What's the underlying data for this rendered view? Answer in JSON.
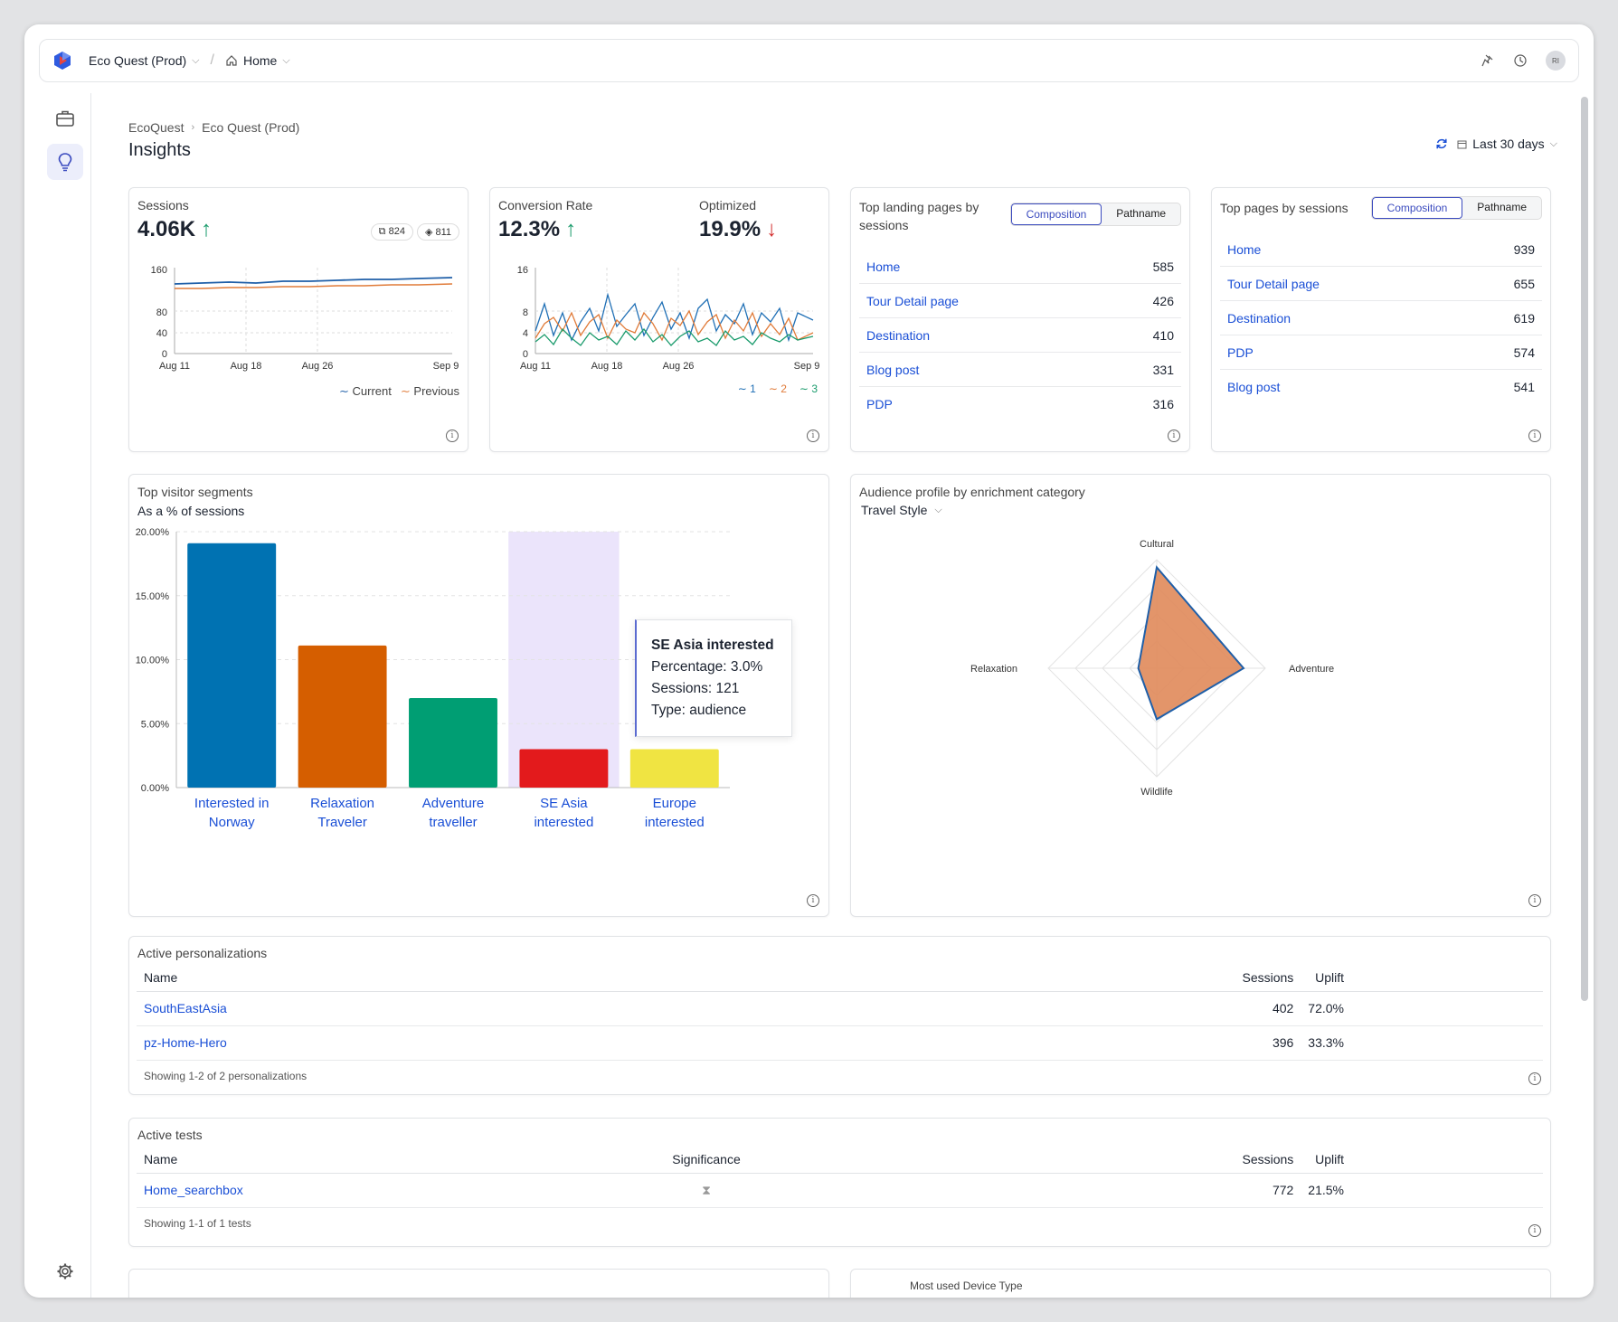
{
  "header": {
    "project": "Eco Quest (Prod)",
    "page": "Home",
    "avatar_initials": "RI"
  },
  "breadcrumb": {
    "org": "EcoQuest",
    "project": "Eco Quest (Prod)"
  },
  "page_title": "Insights",
  "date_range": "Last 30 days",
  "sessions": {
    "label": "Sessions",
    "value": "4.06K",
    "badge1": "824",
    "badge2": "811",
    "legend_current": "Current",
    "legend_previous": "Previous",
    "yticks": [
      "160",
      "80",
      "40",
      "0"
    ],
    "xticks": [
      "Aug 11",
      "Aug 18",
      "Aug 26",
      "Sep 9"
    ]
  },
  "conversion": {
    "label": "Conversion Rate",
    "value": "12.3%",
    "optimized_label": "Optimized",
    "optimized_value": "19.9%",
    "yticks": [
      "16",
      "8",
      "4",
      "0"
    ],
    "xticks": [
      "Aug 11",
      "Aug 18",
      "Aug 26",
      "Sep 9"
    ],
    "legend": [
      "1",
      "2",
      "3"
    ]
  },
  "landing_pages": {
    "title": "Top landing pages by sessions",
    "toggle_on": "Composition",
    "toggle_off": "Pathname",
    "rows": [
      {
        "name": "Home",
        "value": "585"
      },
      {
        "name": "Tour Detail page",
        "value": "426"
      },
      {
        "name": "Destination",
        "value": "410"
      },
      {
        "name": "Blog post",
        "value": "331"
      },
      {
        "name": "PDP",
        "value": "316"
      }
    ]
  },
  "top_pages": {
    "title": "Top pages by sessions",
    "toggle_on": "Composition",
    "toggle_off": "Pathname",
    "rows": [
      {
        "name": "Home",
        "value": "939"
      },
      {
        "name": "Tour Detail page",
        "value": "655"
      },
      {
        "name": "Destination",
        "value": "619"
      },
      {
        "name": "PDP",
        "value": "574"
      },
      {
        "name": "Blog post",
        "value": "541"
      }
    ]
  },
  "segments": {
    "title": "Top visitor segments",
    "subtitle": "As a % of sessions",
    "tooltip": {
      "title": "SE Asia interested",
      "line1": "Percentage: 3.0%",
      "line2": "Sessions: 121",
      "line3": "Type: audience"
    }
  },
  "audience": {
    "title": "Audience profile by enrichment category",
    "selector": "Travel Style"
  },
  "personalizations": {
    "title": "Active personalizations",
    "columns": [
      "Name",
      "Sessions",
      "Uplift"
    ],
    "rows": [
      {
        "name": "SouthEastAsia",
        "sessions": "402",
        "uplift": "72.0%"
      },
      {
        "name": "pz-Home-Hero",
        "sessions": "396",
        "uplift": "33.3%"
      }
    ],
    "footer": "Showing 1-2 of 2 personalizations"
  },
  "tests": {
    "title": "Active tests",
    "columns": [
      "Name",
      "Significance",
      "Sessions",
      "Uplift"
    ],
    "rows": [
      {
        "name": "Home_searchbox",
        "sessions": "772",
        "uplift": "21.5%"
      }
    ],
    "footer": "Showing 1-1 of 1 tests"
  },
  "bottom_card": {
    "title": "Most used Device Type"
  },
  "chart_data": [
    {
      "type": "bar",
      "ylim": [
        0,
        20
      ],
      "ytick_labels": [
        "0.00%",
        "5.00%",
        "10.00%",
        "15.00%",
        "20.00%"
      ],
      "categories": [
        "Interested in Norway",
        "Relaxation Traveler",
        "Adventure traveller",
        "SE Asia interested",
        "Europe interested"
      ],
      "values": [
        19.1,
        11.1,
        7.0,
        3.0,
        3.0
      ],
      "colors": [
        "#0072b2",
        "#d55e00",
        "#009e73",
        "#e31a1c",
        "#f0e442"
      ],
      "highlight_color": "#ebe4fb"
    },
    {
      "type": "radar",
      "categories": [
        "Cultural",
        "Adventure",
        "Wildlife",
        "Relaxation"
      ],
      "values": [
        0.93,
        0.8,
        0.47,
        0.17
      ],
      "fill_color": "#e08a5a",
      "stroke_color": "#1f5fa8"
    }
  ],
  "colors": {
    "accent": "#3b4bbf",
    "link": "#1a4fd6",
    "up": "#1a9b6c",
    "down": "#d32f2f",
    "series_current": "#1f5fa8",
    "series_previous": "#e07b39",
    "series_1": "#1f6fb5",
    "series_2": "#e07b39",
    "series_3": "#1a9b6c"
  }
}
